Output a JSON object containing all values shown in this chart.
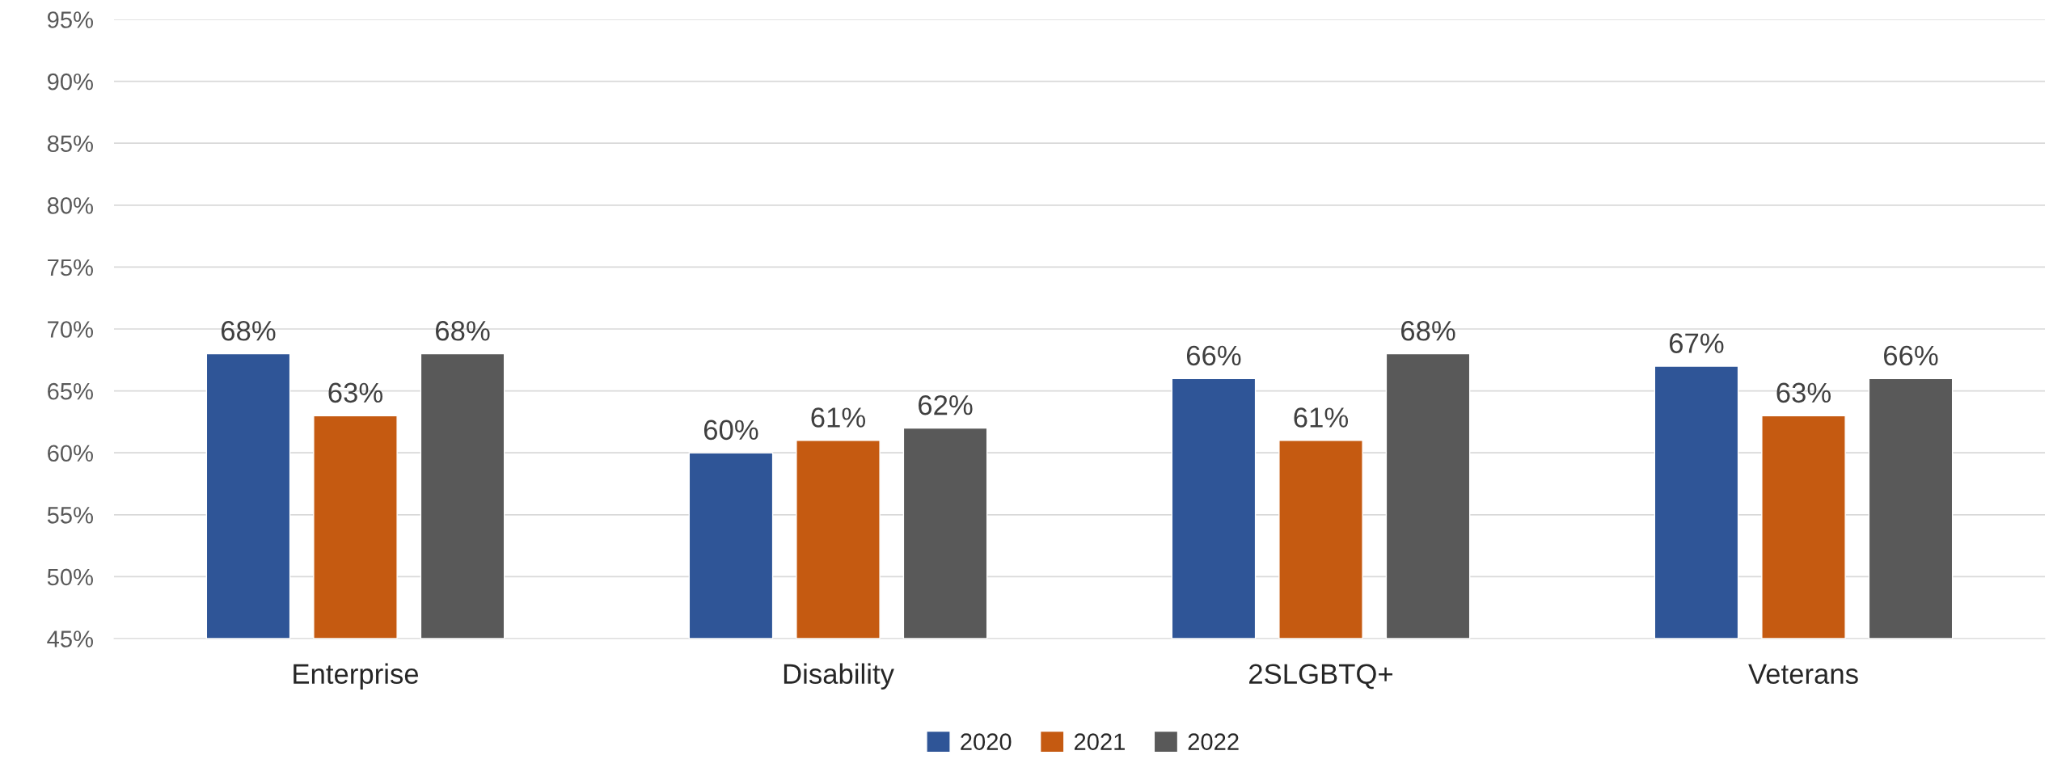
{
  "chart_data": {
    "type": "bar",
    "categories": [
      "Enterprise",
      "Disability",
      "2SLGBTQ+",
      "Veterans"
    ],
    "series": [
      {
        "name": "2020",
        "color": "#2f5597",
        "values": [
          68,
          60,
          66,
          67
        ],
        "value_labels": [
          "68%",
          "60%",
          "66%",
          "67%"
        ]
      },
      {
        "name": "2021",
        "color": "#c55a11",
        "values": [
          63,
          61,
          61,
          63
        ],
        "value_labels": [
          "63%",
          "61%",
          "61%",
          "63%"
        ]
      },
      {
        "name": "2022",
        "color": "#595959",
        "values": [
          68,
          62,
          68,
          66
        ],
        "value_labels": [
          "68%",
          "62%",
          "68%",
          "66%"
        ]
      }
    ],
    "ylim": [
      45,
      95
    ],
    "yticks": [
      {
        "value": 45,
        "label": "45%"
      },
      {
        "value": 50,
        "label": "50%"
      },
      {
        "value": 55,
        "label": "55%"
      },
      {
        "value": 60,
        "label": "60%"
      },
      {
        "value": 65,
        "label": "65%"
      },
      {
        "value": 70,
        "label": "70%"
      },
      {
        "value": 75,
        "label": "75%"
      },
      {
        "value": 80,
        "label": "80%"
      },
      {
        "value": 85,
        "label": "85%"
      },
      {
        "value": 90,
        "label": "90%"
      },
      {
        "value": 95,
        "label": "95%"
      }
    ],
    "grid": "y",
    "legend": "bottom"
  }
}
